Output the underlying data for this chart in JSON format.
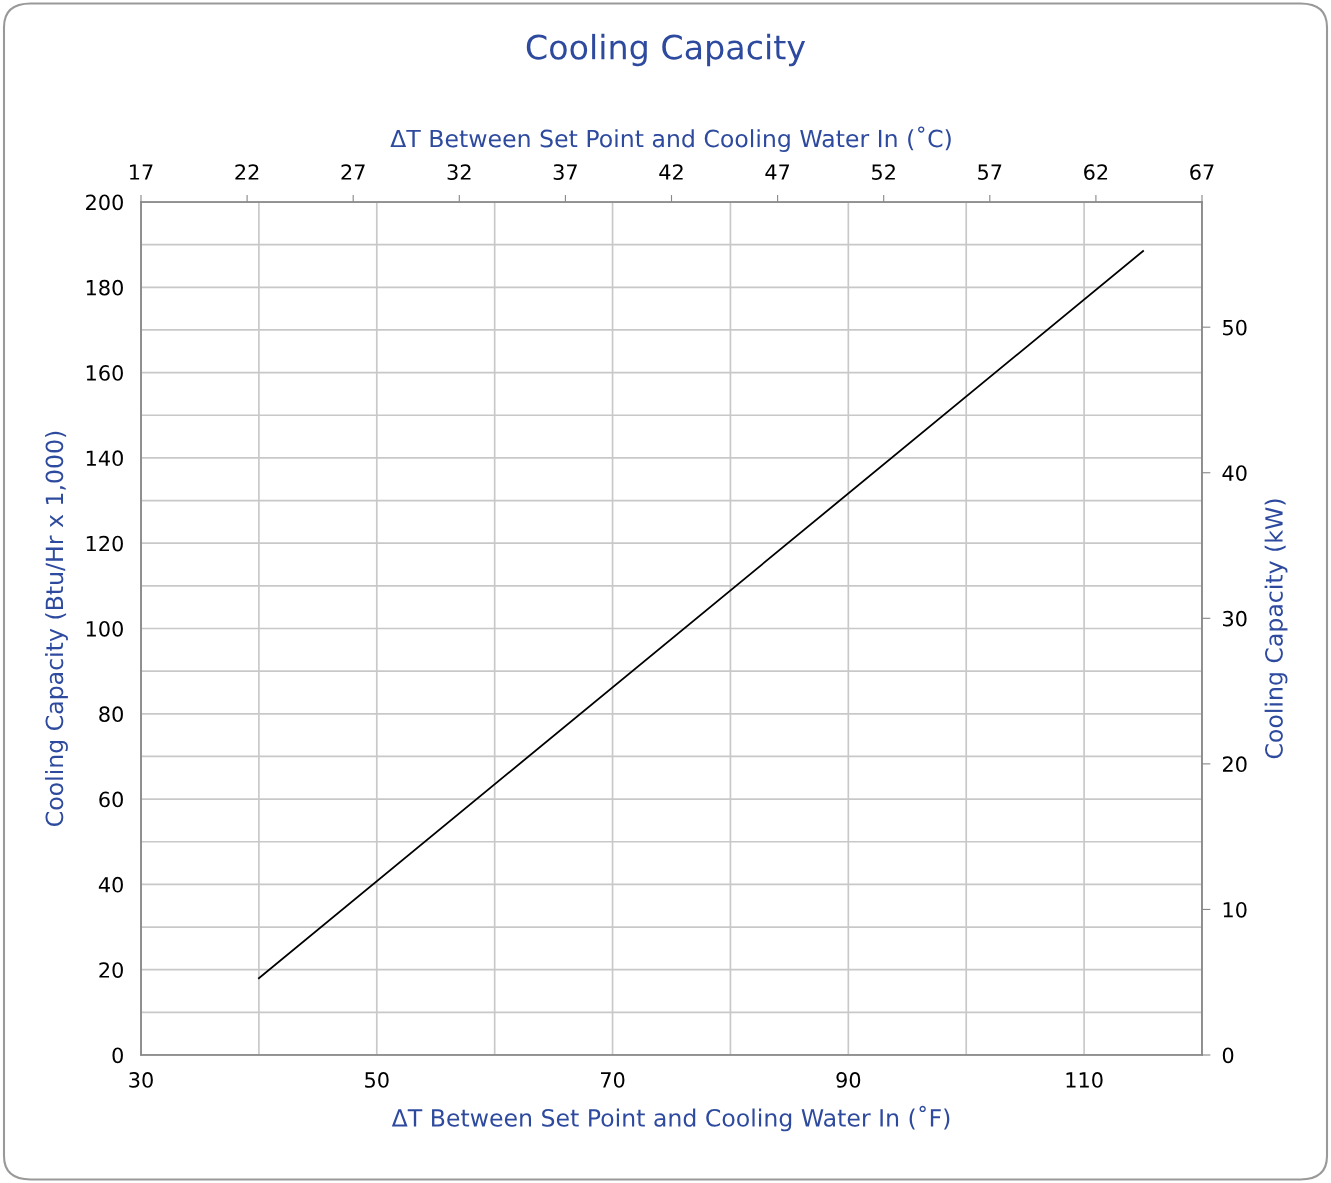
{
  "chart_data": {
    "type": "line",
    "title": "Cooling Capacity",
    "xlabel": "ΔT Between Set Point and Cooling Water In (˚F)",
    "x2label": "ΔT Between Set Point and Cooling Water In (˚C)",
    "ylabel": "Cooling Capacity (Btu/Hr x 1,000)",
    "y2label": "Cooling Capacity (kW)",
    "series": [
      {
        "color": "#000000",
        "x": [
          40,
          115
        ],
        "values": [
          18,
          188.5
        ]
      }
    ],
    "xlim": [
      30,
      120
    ],
    "xticks": [
      30,
      {
        "value": 40,
        "label": null
      },
      50,
      {
        "value": 60,
        "label": null
      },
      70,
      {
        "value": 80,
        "label": null
      },
      90,
      {
        "value": 100,
        "label": null
      },
      110,
      {
        "value": 120,
        "label": null
      }
    ],
    "x2lim": [
      17,
      67
    ],
    "x2ticks": [
      17,
      22,
      27,
      32,
      37,
      42,
      47,
      52,
      57,
      62,
      67
    ],
    "ylim": [
      0,
      200
    ],
    "yticks": [
      0,
      {
        "value": 10,
        "label": null
      },
      20,
      {
        "value": 30,
        "label": null
      },
      40,
      {
        "value": 50,
        "label": null
      },
      60,
      {
        "value": 70,
        "label": null
      },
      80,
      {
        "value": 90,
        "label": null
      },
      100,
      {
        "value": 110,
        "label": null
      },
      120,
      {
        "value": 130,
        "label": null
      },
      140,
      {
        "value": 150,
        "label": null
      },
      160,
      {
        "value": 170,
        "label": null
      },
      180,
      {
        "value": 190,
        "label": null
      },
      200
    ],
    "y2lim": [
      0,
      58.6
    ],
    "y2ticks": [
      0,
      10,
      20,
      30,
      40,
      50
    ],
    "grid": true,
    "marker": "none",
    "line_style": "solid"
  }
}
